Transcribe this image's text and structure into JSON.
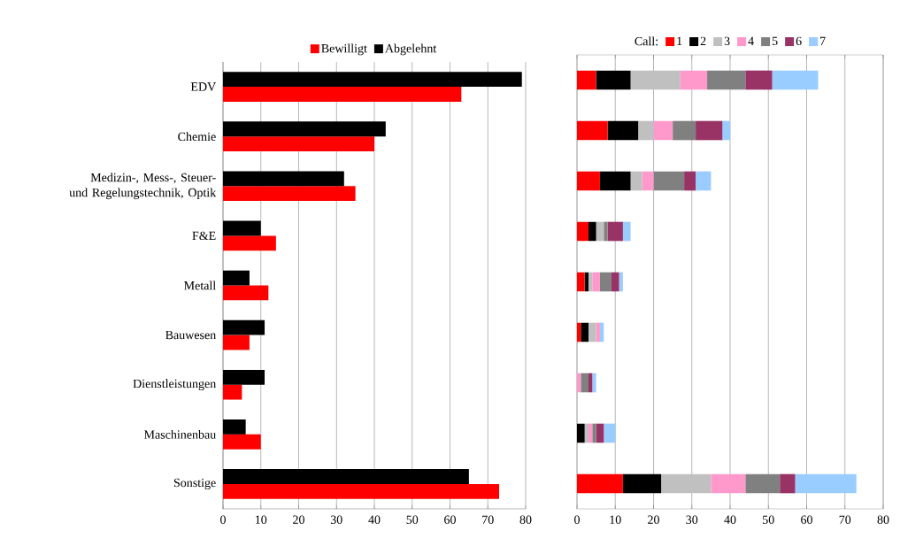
{
  "chart_data": [
    {
      "type": "bar",
      "orientation": "horizontal",
      "categories": [
        "EDV",
        "Chemie",
        "Medizin-, Mess-, Steuer- und Regelungstechnik, Optik",
        "F&E",
        "Metall",
        "Bauwesen",
        "Dienstleistungen",
        "Maschinenbau",
        "Sonstige"
      ],
      "series": [
        {
          "name": "Bewilligt",
          "color": "#ff0000",
          "values": [
            63,
            40,
            35,
            14,
            12,
            7,
            5,
            10,
            73
          ]
        },
        {
          "name": "Abgelehnt",
          "color": "#000000",
          "values": [
            79,
            43,
            32,
            10,
            7,
            11,
            11,
            6,
            65
          ]
        }
      ],
      "xlim": [
        0,
        80
      ],
      "xticks": [
        0,
        10,
        20,
        30,
        40,
        50,
        60,
        70,
        80
      ],
      "grid": "x",
      "legend": "top"
    },
    {
      "type": "bar",
      "orientation": "horizontal",
      "stacked": true,
      "categories": [
        null,
        null,
        null,
        null,
        null,
        null,
        null,
        null,
        null
      ],
      "legend_title": "Call:",
      "series": [
        {
          "name": "1",
          "color": "#ff0000",
          "values": [
            5,
            8,
            6,
            3,
            2,
            1,
            0,
            0,
            12
          ]
        },
        {
          "name": "2",
          "color": "#000000",
          "values": [
            9,
            8,
            8,
            2,
            1,
            2,
            0,
            2,
            10
          ]
        },
        {
          "name": "3",
          "color": "#c0c0c0",
          "values": [
            13,
            4,
            3,
            2,
            1,
            2,
            0,
            1,
            13
          ]
        },
        {
          "name": "4",
          "color": "#ff99cc",
          "values": [
            7,
            5,
            3,
            0,
            2,
            1,
            1,
            1,
            9
          ]
        },
        {
          "name": "5",
          "color": "#808080",
          "values": [
            10,
            6,
            8,
            1,
            3,
            0,
            2,
            1,
            9
          ]
        },
        {
          "name": "6",
          "color": "#993366",
          "values": [
            7,
            7,
            3,
            4,
            2,
            0,
            1,
            2,
            4
          ]
        },
        {
          "name": "7",
          "color": "#99ccff",
          "values": [
            12,
            2,
            4,
            2,
            1,
            1,
            1,
            3,
            16
          ]
        }
      ],
      "xlim": [
        0,
        80
      ],
      "xticks": [
        0,
        10,
        20,
        30,
        40,
        50,
        60,
        70,
        80
      ],
      "grid": "x",
      "legend": "top",
      "tick_labels": "x"
    }
  ]
}
